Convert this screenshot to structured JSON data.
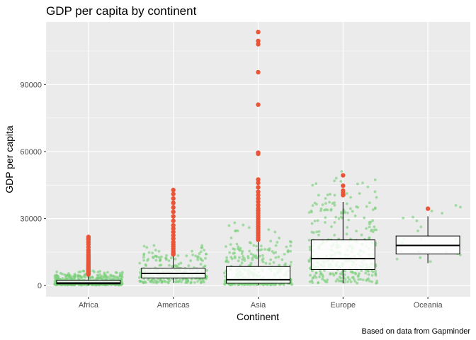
{
  "chart_data": {
    "type": "box",
    "title": "GDP per capita by continent",
    "xlabel": "Continent",
    "ylabel": "GDP per capita",
    "caption": "Based on data from Gapminder",
    "categories": [
      "Africa",
      "Americas",
      "Asia",
      "Europe",
      "Oceania"
    ],
    "ylim": [
      -5000,
      118000
    ],
    "yticks": [
      0,
      30000,
      60000,
      90000
    ],
    "ytick_labels": [
      "0",
      "30000",
      "60000",
      "90000"
    ],
    "grid": true,
    "colors": {
      "panel": "#ebebeb",
      "gridline": "#ffffff",
      "jitter_points": "#7bd07b",
      "outliers": "#e8563a",
      "box_fill": "#ffffff",
      "box_stroke": "#000000"
    },
    "boxes": [
      {
        "category": "Africa",
        "min": 241,
        "q1": 761,
        "median": 1192,
        "q3": 2377,
        "max": 4800,
        "outliers": [
          5000,
          5300,
          5600,
          5900,
          6200,
          6500,
          6800,
          7100,
          7400,
          7700,
          8000,
          8400,
          8800,
          9300,
          9800,
          10300,
          11000,
          11800,
          12500,
          13200,
          14000,
          15000,
          16000,
          17200,
          18500,
          19500,
          20500,
          21200,
          21800
        ]
      },
      {
        "category": "Americas",
        "min": 1200,
        "q1": 3428,
        "median": 5466,
        "q3": 7830,
        "max": 13500,
        "outliers": [
          14000,
          14700,
          15500,
          16500,
          17500,
          18500,
          19500,
          21000,
          22500,
          24000,
          25500,
          27000,
          29000,
          31000,
          33000,
          35000,
          37000,
          39000,
          41000,
          42800
        ]
      },
      {
        "category": "Asia",
        "min": 331,
        "q1": 1057,
        "median": 2647,
        "q3": 8549,
        "max": 19500,
        "outliers": [
          20500,
          21500,
          22500,
          23500,
          24500,
          25500,
          26500,
          27500,
          28500,
          29500,
          30500,
          31500,
          32500,
          33500,
          34500,
          36000,
          37500,
          39000,
          40500,
          42000,
          44000,
          46000,
          47500,
          59000,
          59500,
          81000,
          95500,
          108000,
          109500,
          113500
        ]
      },
      {
        "category": "Europe",
        "min": 973,
        "q1": 7213,
        "median": 12082,
        "q3": 20461,
        "max": 37500,
        "outliers": [
          40500,
          41500,
          42500,
          44700,
          49357
        ]
      },
      {
        "category": "Oceania",
        "min": 10040,
        "q1": 14142,
        "median": 17983,
        "q3": 22214,
        "max": 31000,
        "outliers": [
          34435
        ]
      }
    ]
  }
}
